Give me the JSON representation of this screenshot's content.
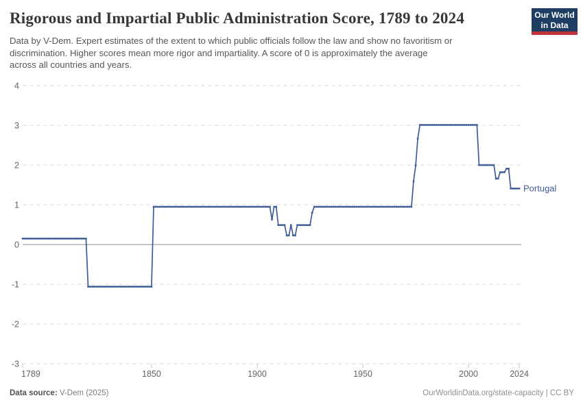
{
  "header": {
    "title": "Rigorous and Impartial Public Administration Score, 1789 to 2024",
    "subtitle_lines": [
      "Data by V-Dem. Expert estimates of the extent to which public officials follow the law and show no favoritism or",
      "discrimination. Higher scores mean more rigor and impartiality. A score of 0 is approximately the average",
      "across all countries and years."
    ],
    "logo": {
      "line1": "Our World",
      "line2": "in Data",
      "bg_color": "#1d3d63",
      "bar_color": "#c0333b"
    }
  },
  "chart_data": {
    "type": "line",
    "title": "Rigorous and Impartial Public Administration Score, 1789 to 2024",
    "xlabel": "",
    "ylabel": "",
    "xlim": [
      1789,
      2024
    ],
    "ylim": [
      -3,
      4
    ],
    "x_ticks": [
      1789,
      1850,
      1900,
      1950,
      2000,
      2024
    ],
    "y_ticks": [
      -3,
      -2,
      -1,
      0,
      1,
      2,
      3,
      4
    ],
    "grid": "horizontal-dashed",
    "zero_line": true,
    "legend_position": "end-of-line",
    "series": [
      {
        "name": "Portugal",
        "color": "#3d5b96",
        "steps": [
          [
            1789,
            1819,
            0.15
          ],
          [
            1820,
            1850,
            -1.06
          ],
          [
            1851,
            1906,
            0.95
          ],
          [
            1907,
            1907,
            0.63
          ],
          [
            1908,
            1909,
            0.95
          ],
          [
            1910,
            1913,
            0.49
          ],
          [
            1914,
            1915,
            0.23
          ],
          [
            1916,
            1916,
            0.49
          ],
          [
            1917,
            1918,
            0.23
          ],
          [
            1919,
            1925,
            0.49
          ],
          [
            1926,
            1926,
            0.8
          ],
          [
            1927,
            1973,
            0.95
          ],
          [
            1974,
            1974,
            1.59
          ],
          [
            1975,
            1975,
            1.99
          ],
          [
            1976,
            1976,
            2.67
          ],
          [
            1977,
            2004,
            3.01
          ],
          [
            2005,
            2012,
            2.0
          ],
          [
            2013,
            2014,
            1.66
          ],
          [
            2015,
            2017,
            1.82
          ],
          [
            2018,
            2019,
            1.91
          ],
          [
            2020,
            2024,
            1.41
          ]
        ]
      }
    ],
    "colors": {
      "grid": "#dcdcdc",
      "zero_line": "#b3b3b3",
      "tick_label": "#636363"
    }
  },
  "footer": {
    "source_label": "Data source:",
    "source_value": " V-Dem (2025)",
    "right_text": "OurWorldinData.org/state-capacity | CC BY"
  }
}
